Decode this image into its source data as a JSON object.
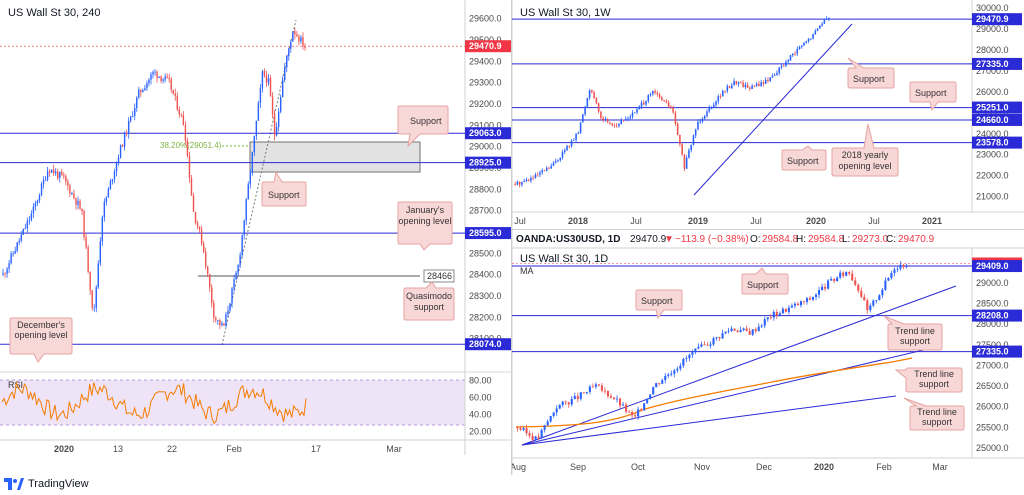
{
  "footer": {
    "brand": "TradingView"
  },
  "chart_data": [
    {
      "id": "h4",
      "type": "candlestick",
      "title": "US Wall St 30, 240",
      "ylim": [
        28000,
        29650
      ],
      "yticks": [
        "29600.0",
        "29500.0",
        "29400.0",
        "29300.0",
        "29200.0",
        "29100.0",
        "29000.0",
        "28900.0",
        "28800.0",
        "28700.0",
        "28600.0",
        "28500.0",
        "28400.0",
        "28300.0",
        "28200.0",
        "28100.0"
      ],
      "xticks": [
        "2020",
        "13",
        "22",
        "Feb",
        "17",
        "Mar"
      ],
      "price_tags": [
        {
          "label": "29470.9",
          "value": 29470.9,
          "color": "#f23645"
        },
        {
          "label": "29063.0",
          "value": 29063,
          "color": "#2a2ad6"
        },
        {
          "label": "28925.0",
          "value": 28925,
          "color": "#2a2ad6"
        },
        {
          "label": "28595.0",
          "value": 28595,
          "color": "#2a2ad6"
        },
        {
          "label": "28074.0",
          "value": 28074,
          "color": "#2a2ad6"
        }
      ],
      "level_label": "28466",
      "fib_label": "38.20%(29051.4)",
      "annotations": [
        "Support",
        "Support",
        "January's opening level",
        "Quasimodo support",
        "December's opening level"
      ],
      "rsi": {
        "label": "RSI",
        "ticks": [
          "80.00",
          "60.00",
          "40.00",
          "20.00"
        ]
      }
    },
    {
      "id": "w1",
      "type": "candlestick",
      "title": "US Wall St 30, 1W",
      "ylim": [
        20600,
        30100
      ],
      "yticks": [
        "30000.0",
        "29000.0",
        "28000.0",
        "27000.0",
        "26000.0",
        "25000.0",
        "24000.0",
        "23000.0",
        "22000.0",
        "21000.0"
      ],
      "xticks": [
        "Jul",
        "2018",
        "Jul",
        "2019",
        "Jul",
        "2020",
        "Jul",
        "2021"
      ],
      "price_tags": [
        {
          "label": "29470.9",
          "value": 29470.9,
          "color": "#2a2ad6"
        },
        {
          "label": "27335.0",
          "value": 27335,
          "color": "#2a2ad6"
        },
        {
          "label": "25251.0",
          "value": 25251,
          "color": "#2a2ad6"
        },
        {
          "label": "24660.0",
          "value": 24660,
          "color": "#2a2ad6"
        },
        {
          "label": "23578.0",
          "value": 23578,
          "color": "#2a2ad6"
        }
      ],
      "annotations": [
        "Support",
        "Support",
        "Support",
        "2018 yearly opening level"
      ]
    },
    {
      "id": "d1",
      "type": "candlestick",
      "header": "OANDA:US30USD, 1D",
      "ohlc": {
        "last": "29470.9",
        "change": "−113.9 (−0.38%)",
        "o": "29584.8",
        "h": "29584.8",
        "l": "29273.0",
        "c": "29470.9"
      },
      "title": "US Wall St 30, 1D",
      "ma_label": "MA",
      "ylim": [
        24900,
        29750
      ],
      "yticks": [
        "29500.0",
        "29000.0",
        "28500.0",
        "28000.0",
        "27500.0",
        "27000.0",
        "26500.0",
        "26000.0",
        "25500.0",
        "25000.0"
      ],
      "xticks": [
        "Aug",
        "Sep",
        "Oct",
        "Nov",
        "Dec",
        "2020",
        "Feb",
        "Mar"
      ],
      "price_tags": [
        {
          "label": "29470.9",
          "value": 29470.9,
          "color": "#f23645"
        },
        {
          "label": "29409.0",
          "value": 29409,
          "color": "#2a2ad6"
        },
        {
          "label": "28208.0",
          "value": 28208,
          "color": "#2a2ad6"
        },
        {
          "label": "27335.0",
          "value": 27335,
          "color": "#2a2ad6"
        }
      ],
      "annotations": [
        "Support",
        "Support",
        "Trend line support",
        "Trend line support",
        "Trend line support"
      ]
    }
  ]
}
